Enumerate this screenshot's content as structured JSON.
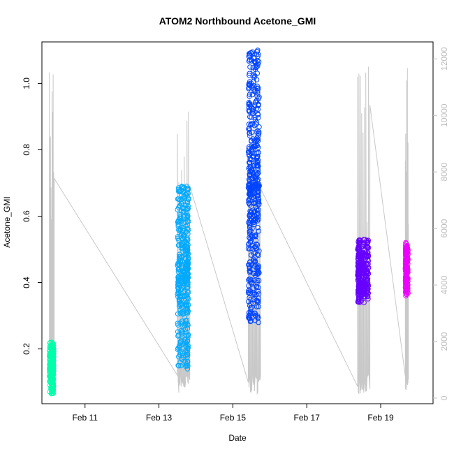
{
  "chart_data": {
    "type": "scatter",
    "title": "ATOM2 Northbound Acetone_GMI",
    "xlabel": "Date",
    "ylabel": "Acetone_GMI",
    "xlim": [
      "2017-02-09T20:00",
      "2017-02-20T10:00"
    ],
    "ylim": [
      0.035,
      1.125
    ],
    "y2lim": [
      -200,
      12600
    ],
    "x_ticks": [
      {
        "date": "2017-02-11",
        "label": "Feb 11"
      },
      {
        "date": "2017-02-13",
        "label": "Feb 13"
      },
      {
        "date": "2017-02-15",
        "label": "Feb 15"
      },
      {
        "date": "2017-02-17",
        "label": "Feb 17"
      },
      {
        "date": "2017-02-19",
        "label": "Feb 19"
      }
    ],
    "y_ticks": [
      "0.2",
      "0.4",
      "0.6",
      "0.8",
      "1.0"
    ],
    "y2_ticks": [
      "0",
      "2000",
      "4000",
      "6000",
      "8000",
      "10000",
      "12000"
    ],
    "secondary_color": "#c8c8c8",
    "series": [
      {
        "color": "#00FFAA",
        "t_range": [
          "2017-02-10T00:50",
          "2017-02-10T04:00"
        ],
        "y_range": [
          0.065,
          0.22
        ],
        "count": 260
      },
      {
        "color": "#00AAFF",
        "t_range": [
          "2017-02-13T12:00",
          "2017-02-13T20:00"
        ],
        "y_range": [
          0.14,
          0.69
        ],
        "count": 420
      },
      {
        "color": "#0044FF",
        "t_range": [
          "2017-02-15T10:00",
          "2017-02-15T18:00"
        ],
        "y_range": [
          0.28,
          1.1
        ],
        "count": 480
      },
      {
        "color": "#6600FF",
        "t_range": [
          "2017-02-18T09:00",
          "2017-02-18T17:00"
        ],
        "y_range": [
          0.34,
          0.53
        ],
        "count": 300
      },
      {
        "color": "#EE00FF",
        "t_range": [
          "2017-02-19T16:00",
          "2017-02-19T18:00"
        ],
        "y_range": [
          0.36,
          0.52
        ],
        "count": 150
      }
    ]
  }
}
